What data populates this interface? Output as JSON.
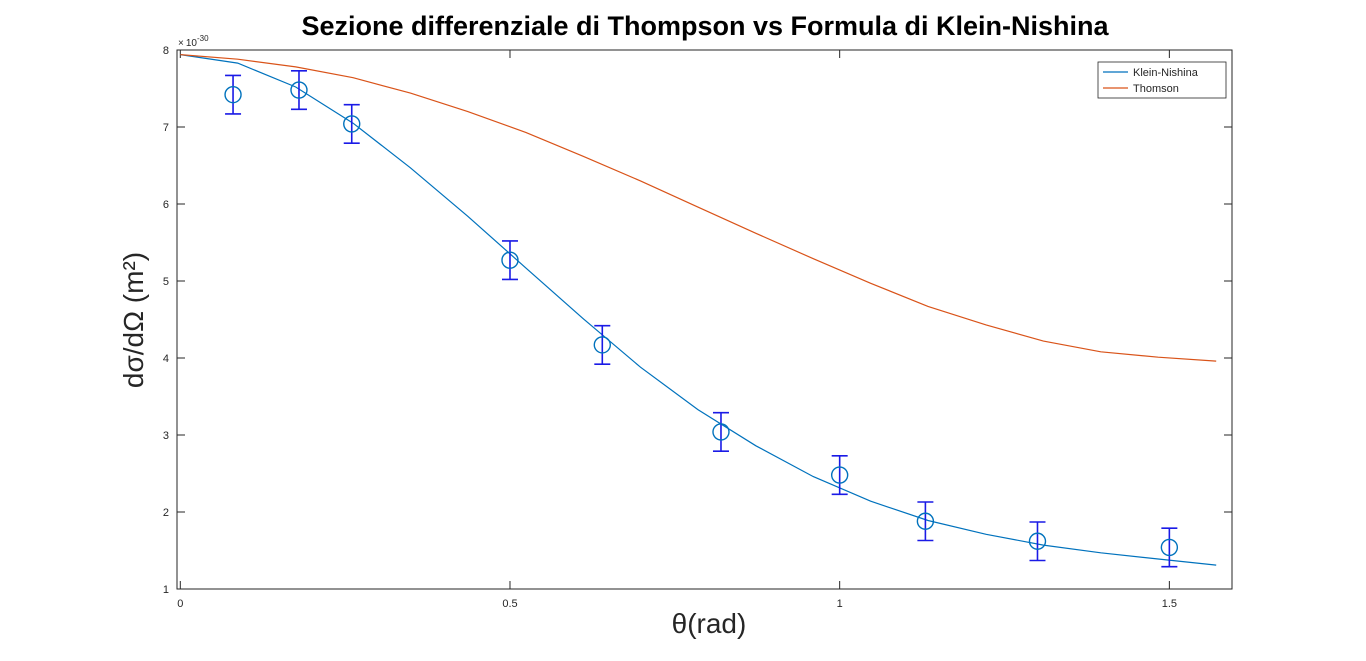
{
  "chart_data": {
    "type": "line",
    "title": "Sezione differenziale di Thompson vs Formula di Klein-Nishina",
    "xlabel": "θ(rad)",
    "ylabel": "dσ/dΩ  (m²)",
    "y_exponent": "× 10^-30",
    "y_multiplier_text": "10",
    "y_exponent_text": "-30",
    "xlim": [
      -0.005,
      1.595
    ],
    "ylim": [
      1,
      8
    ],
    "x_ticks": [
      0,
      0.5,
      1,
      1.5
    ],
    "x_tick_labels": [
      "0",
      "0.5",
      "1",
      "1.5"
    ],
    "y_ticks": [
      1,
      2,
      3,
      4,
      5,
      6,
      7,
      8
    ],
    "y_tick_labels": [
      "1",
      "2",
      "3",
      "4",
      "5",
      "6",
      "7",
      "8"
    ],
    "grid": false,
    "legend_position": "top-right",
    "series": [
      {
        "name": "Klein-Nishina",
        "color": "#0072BD",
        "x": [
          0,
          0.087,
          0.175,
          0.262,
          0.349,
          0.436,
          0.524,
          0.611,
          0.698,
          0.785,
          0.873,
          0.96,
          1.047,
          1.134,
          1.222,
          1.309,
          1.396,
          1.483,
          1.571
        ],
        "y": [
          7.94,
          7.83,
          7.52,
          7.05,
          6.47,
          5.84,
          5.17,
          4.51,
          3.88,
          3.33,
          2.86,
          2.46,
          2.14,
          1.89,
          1.71,
          1.57,
          1.47,
          1.39,
          1.31
        ]
      },
      {
        "name": "Thomson",
        "color": "#D95319",
        "x": [
          0,
          0.087,
          0.175,
          0.262,
          0.349,
          0.436,
          0.524,
          0.611,
          0.698,
          0.785,
          0.873,
          0.96,
          1.047,
          1.134,
          1.222,
          1.309,
          1.396,
          1.483,
          1.571
        ],
        "y": [
          7.94,
          7.88,
          7.78,
          7.64,
          7.44,
          7.2,
          6.93,
          6.62,
          6.3,
          5.96,
          5.62,
          5.29,
          4.97,
          4.67,
          4.43,
          4.22,
          4.08,
          4.01,
          3.96
        ]
      },
      {
        "name": "",
        "type": "errorbar",
        "color": "#1A1AE6",
        "x": [
          0.08,
          0.18,
          0.26,
          0.5,
          0.64,
          0.82,
          1.0,
          1.13,
          1.3,
          1.5
        ],
        "y": [
          7.42,
          7.48,
          7.04,
          5.27,
          4.17,
          3.04,
          2.48,
          1.88,
          1.62,
          1.54
        ],
        "err": [
          0.25,
          0.25,
          0.25,
          0.25,
          0.25,
          0.25,
          0.25,
          0.25,
          0.25,
          0.25
        ]
      }
    ]
  }
}
